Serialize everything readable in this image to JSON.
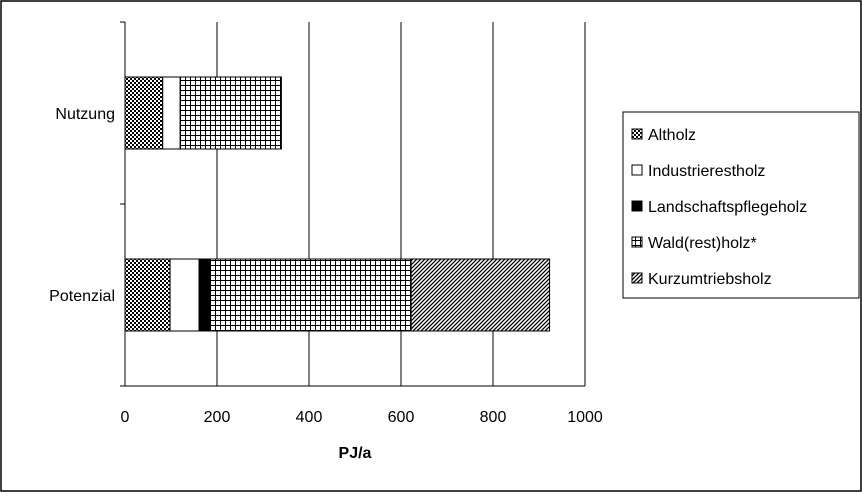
{
  "chart_data": {
    "type": "bar",
    "orientation": "horizontal",
    "stacked": true,
    "categories": [
      "Nutzung",
      "Potenzial"
    ],
    "series": [
      {
        "name": "Altholz",
        "values": [
          82,
          98
        ],
        "pattern": "checker"
      },
      {
        "name": "Industrierestholz",
        "values": [
          38,
          63
        ],
        "pattern": "white"
      },
      {
        "name": "Landschaftspflegeholz",
        "values": [
          0,
          23
        ],
        "pattern": "black"
      },
      {
        "name": "Wald(rest)holz*",
        "values": [
          220,
          438
        ],
        "pattern": "grid"
      },
      {
        "name": "Kurzumtriebsholz",
        "values": [
          0,
          301
        ],
        "pattern": "diagonal"
      }
    ],
    "xlabel": "PJ/a",
    "ylabel": "",
    "title": "",
    "xlim": [
      0,
      1000
    ],
    "xticks": [
      "0",
      "200",
      "400",
      "600",
      "800",
      "1000"
    ],
    "grid": "vertical",
    "legend_position": "right",
    "colors": {
      "background": "#ffffff",
      "grid": "#000000",
      "bar_stroke": "#000000"
    }
  }
}
